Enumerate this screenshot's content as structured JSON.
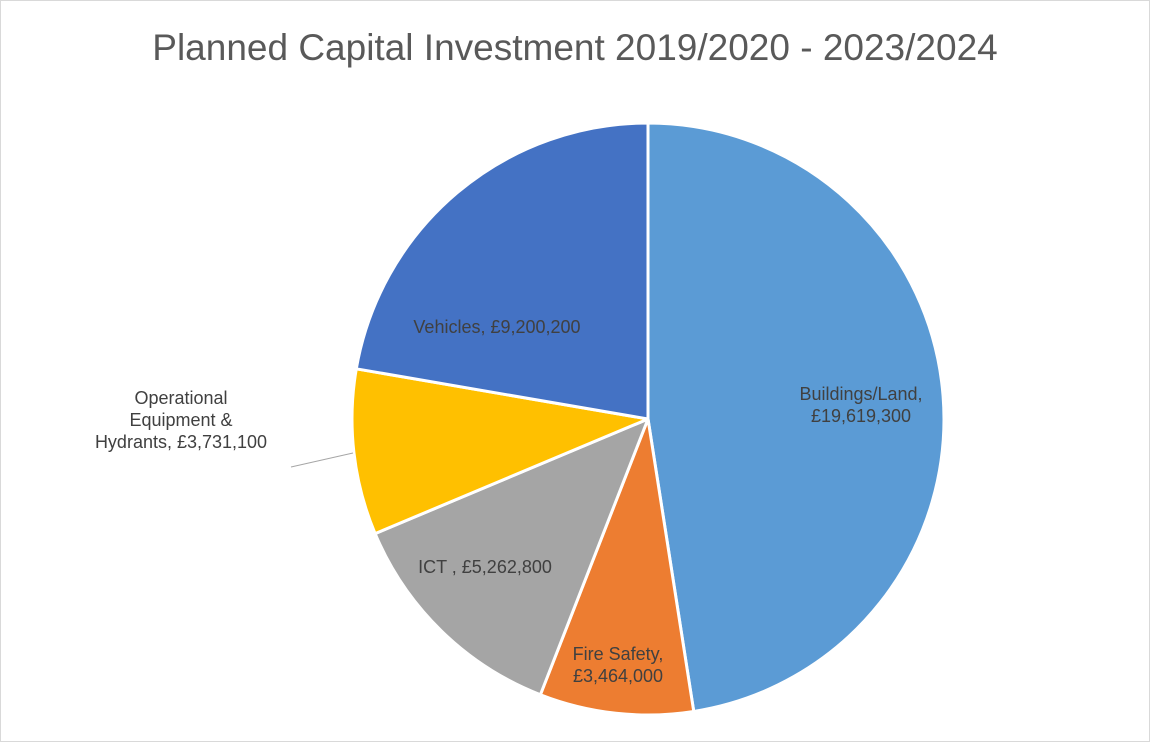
{
  "chart_data": {
    "type": "pie",
    "title": "Planned Capital Investment 2019/2020 - 2023/2024",
    "start_angle_deg": 0,
    "direction": "clockwise",
    "slices": [
      {
        "name": "Buildings/Land",
        "value": 19619300,
        "color": "#5B9BD5",
        "label_lines": [
          "Buildings/Land,",
          "£19,619,300"
        ]
      },
      {
        "name": "Fire Safety",
        "value": 3464000,
        "color": "#ED7D31",
        "label_lines": [
          "Fire Safety,",
          "£3,464,000"
        ]
      },
      {
        "name": "ICT",
        "value": 5262800,
        "color": "#A5A5A5",
        "label_lines": [
          "ICT , £5,262,800"
        ]
      },
      {
        "name": "Operational Equipment & Hydrants",
        "value": 3731100,
        "color": "#FFC000",
        "label_lines": [
          "Operational",
          "Equipment &",
          "Hydrants, £3,731,100"
        ],
        "leader_line": true
      },
      {
        "name": "Vehicles",
        "value": 9200200,
        "color": "#4472C4",
        "label_lines": [
          "Vehicles, £9,200,200"
        ]
      }
    ]
  }
}
